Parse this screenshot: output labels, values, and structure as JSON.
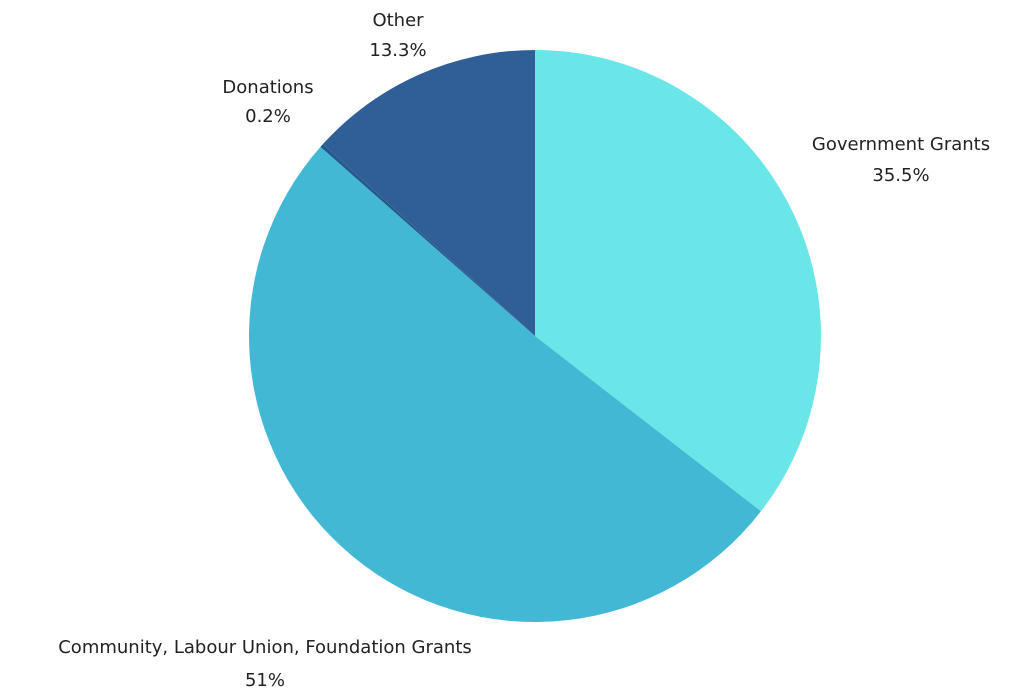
{
  "chart_data": {
    "type": "pie",
    "start_angle_deg": 0,
    "direction": "clockwise",
    "slices": [
      {
        "label": "Government Grants",
        "value": 35.5,
        "value_label": "35.5%",
        "color": "#6ae5e8"
      },
      {
        "label": "Community, Labour Union, Foundation Grants",
        "value": 51,
        "value_label": "51%",
        "color": "#43b8d5"
      },
      {
        "label": "Donations",
        "value": 0.2,
        "value_label": "0.2%",
        "color": "#235a8c"
      },
      {
        "label": "Other",
        "value": 13.3,
        "value_label": "13.3%",
        "color": "#2f5f96"
      }
    ]
  }
}
